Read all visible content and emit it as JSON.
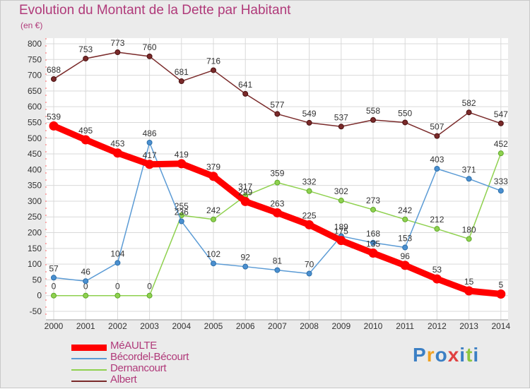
{
  "title": "Evolution du Montant de la Dette par Habitant",
  "subtitle": "(en €)",
  "logo": {
    "text": "Proxiti",
    "colors": [
      "#3b7fc4",
      "#f0a020",
      "#3b7fc4",
      "#e04040",
      "#3b7fc4",
      "#8dc63f",
      "#3b7fc4"
    ]
  },
  "colors": {
    "background": "#ebebeb",
    "plot_bg": "#ffffff",
    "grid": "#d9d9d9",
    "title": "#b03a7a"
  },
  "chart_data": {
    "type": "line",
    "title": "Evolution du Montant de la Dette par Habitant",
    "ylabel": "(en €)",
    "xlabel": "",
    "ylim": [
      -50,
      800
    ],
    "ytick_step": 50,
    "grid": true,
    "legend_position": "bottom-left",
    "x": [
      "2000",
      "2001",
      "2002",
      "2003",
      "2004",
      "2005",
      "2006",
      "2007",
      "2008",
      "2009",
      "2010",
      "2011",
      "2012",
      "2013",
      "2014"
    ],
    "series": [
      {
        "name": "Albert",
        "color": "#7a2a2a",
        "values": [
          688,
          753,
          773,
          760,
          681,
          716,
          641,
          577,
          549,
          537,
          558,
          550,
          507,
          582,
          547
        ]
      },
      {
        "name": "Dernancourt",
        "color": "#8fd14f",
        "values": [
          0,
          0,
          0,
          0,
          255,
          242,
          317,
          359,
          332,
          302,
          273,
          242,
          212,
          180,
          452
        ]
      },
      {
        "name": "Bécordel-Bécourt",
        "color": "#5b9bd5",
        "values": [
          57,
          46,
          104,
          486,
          236,
          102,
          92,
          81,
          70,
          189,
          168,
          153,
          403,
          371,
          333
        ]
      },
      {
        "name": "MéAULTE",
        "color": "#ff0000",
        "values": [
          539,
          495,
          453,
          417,
          419,
          379,
          299,
          263,
          225,
          175,
          135,
          96,
          53,
          15,
          5
        ]
      }
    ],
    "legend": [
      "MéAULTE",
      "Bécordel-Bécourt",
      "Dernancourt",
      "Albert"
    ]
  }
}
